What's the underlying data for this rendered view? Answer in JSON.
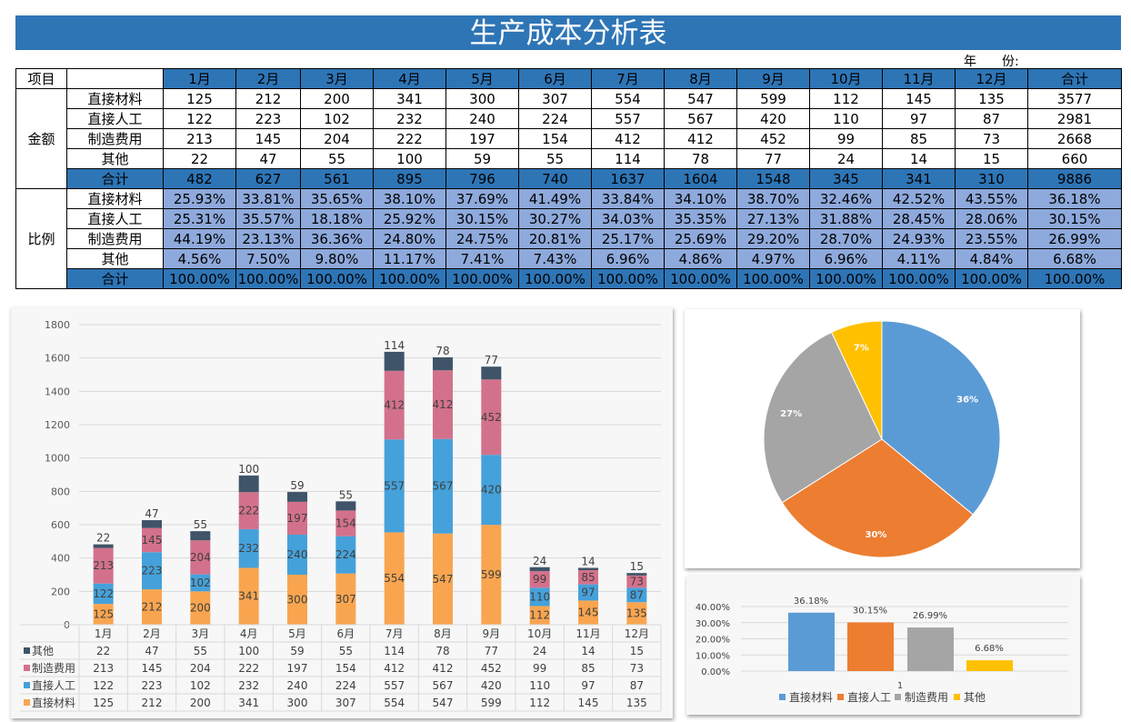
{
  "title": "生产成本分析表",
  "year_label": "年　　份:",
  "table": {
    "header_item": "项目",
    "months": [
      "1月",
      "2月",
      "3月",
      "4月",
      "5月",
      "6月",
      "7月",
      "8月",
      "9月",
      "10月",
      "11月",
      "12月"
    ],
    "total_label": "合计",
    "amount_group": "金额",
    "ratio_group": "比例",
    "amount_rows": [
      {
        "label": "直接材料",
        "values": [
          "125",
          "212",
          "200",
          "341",
          "300",
          "307",
          "554",
          "547",
          "599",
          "112",
          "145",
          "135"
        ],
        "total": "3577"
      },
      {
        "label": "直接人工",
        "values": [
          "122",
          "223",
          "102",
          "232",
          "240",
          "224",
          "557",
          "567",
          "420",
          "110",
          "97",
          "87"
        ],
        "total": "2981"
      },
      {
        "label": "制造费用",
        "values": [
          "213",
          "145",
          "204",
          "222",
          "197",
          "154",
          "412",
          "412",
          "452",
          "99",
          "85",
          "73"
        ],
        "total": "2668"
      },
      {
        "label": "其他",
        "values": [
          "22",
          "47",
          "55",
          "100",
          "59",
          "55",
          "114",
          "78",
          "77",
          "24",
          "14",
          "15"
        ],
        "total": "660"
      },
      {
        "label": "合计",
        "values": [
          "482",
          "627",
          "561",
          "895",
          "796",
          "740",
          "1637",
          "1604",
          "1548",
          "345",
          "341",
          "310"
        ],
        "total": "9886"
      }
    ],
    "ratio_rows": [
      {
        "label": "直接材料",
        "values": [
          "25.93%",
          "33.81%",
          "35.65%",
          "38.10%",
          "37.69%",
          "41.49%",
          "33.84%",
          "34.10%",
          "38.70%",
          "32.46%",
          "42.52%",
          "43.55%"
        ],
        "total": "36.18%"
      },
      {
        "label": "直接人工",
        "values": [
          "25.31%",
          "35.57%",
          "18.18%",
          "25.92%",
          "30.15%",
          "30.27%",
          "34.03%",
          "35.35%",
          "27.13%",
          "31.88%",
          "28.45%",
          "28.06%"
        ],
        "total": "30.15%"
      },
      {
        "label": "制造费用",
        "values": [
          "44.19%",
          "23.13%",
          "36.36%",
          "24.80%",
          "24.75%",
          "20.81%",
          "25.17%",
          "25.69%",
          "29.20%",
          "28.70%",
          "24.93%",
          "23.55%"
        ],
        "total": "26.99%"
      },
      {
        "label": "其他",
        "values": [
          "4.56%",
          "7.50%",
          "9.80%",
          "11.17%",
          "7.41%",
          "7.43%",
          "6.96%",
          "4.86%",
          "4.97%",
          "6.96%",
          "4.11%",
          "4.84%"
        ],
        "total": "6.68%"
      },
      {
        "label": "合计",
        "values": [
          "100.00%",
          "100.00%",
          "100.00%",
          "100.00%",
          "100.00%",
          "100.00%",
          "100.00%",
          "100.00%",
          "100.00%",
          "100.00%",
          "100.00%",
          "100.00%"
        ],
        "total": "100.00%"
      }
    ]
  },
  "chart_data": [
    {
      "type": "bar",
      "stacked": true,
      "categories": [
        "1月",
        "2月",
        "3月",
        "4月",
        "5月",
        "6月",
        "7月",
        "8月",
        "9月",
        "10月",
        "11月",
        "12月"
      ],
      "ylim": [
        0,
        1800
      ],
      "yticks": [
        0,
        200,
        400,
        600,
        800,
        1000,
        1200,
        1400,
        1600,
        1800
      ],
      "series": [
        {
          "name": "直接材料",
          "color": "#F9A550",
          "values": [
            125,
            212,
            200,
            341,
            300,
            307,
            554,
            547,
            599,
            112,
            145,
            135
          ]
        },
        {
          "name": "直接人工",
          "color": "#45A1DA",
          "values": [
            122,
            223,
            102,
            232,
            240,
            224,
            557,
            567,
            420,
            110,
            97,
            87
          ]
        },
        {
          "name": "制造费用",
          "color": "#D3718C",
          "values": [
            213,
            145,
            204,
            222,
            197,
            154,
            412,
            412,
            452,
            99,
            85,
            73
          ]
        },
        {
          "name": "其他",
          "color": "#3F5468",
          "values": [
            22,
            47,
            55,
            100,
            59,
            55,
            114,
            78,
            77,
            24,
            14,
            15
          ]
        }
      ]
    },
    {
      "type": "pie",
      "labels": [
        "直接材料",
        "直接人工",
        "制造费用",
        "其他"
      ],
      "values": [
        36,
        30,
        27,
        7
      ],
      "data_labels": [
        "36%",
        "30%",
        "27%",
        "7%"
      ],
      "colors": [
        "#5B9BD5",
        "#ED7D31",
        "#A5A5A5",
        "#FFC000"
      ]
    },
    {
      "type": "bar",
      "categories": [
        "1"
      ],
      "ylim": [
        0,
        40
      ],
      "yticks": [
        "0.00%",
        "10.00%",
        "20.00%",
        "30.00%",
        "40.00%"
      ],
      "labels": [
        "直接材料",
        "直接人工",
        "制造费用",
        "其他"
      ],
      "values": [
        36.18,
        30.15,
        26.99,
        6.68
      ],
      "data_labels": [
        "36.18%",
        "30.15%",
        "26.99%",
        "6.68%"
      ],
      "colors": [
        "#5B9BD5",
        "#ED7D31",
        "#A5A5A5",
        "#FFC000"
      ],
      "legend": "bottom"
    }
  ]
}
